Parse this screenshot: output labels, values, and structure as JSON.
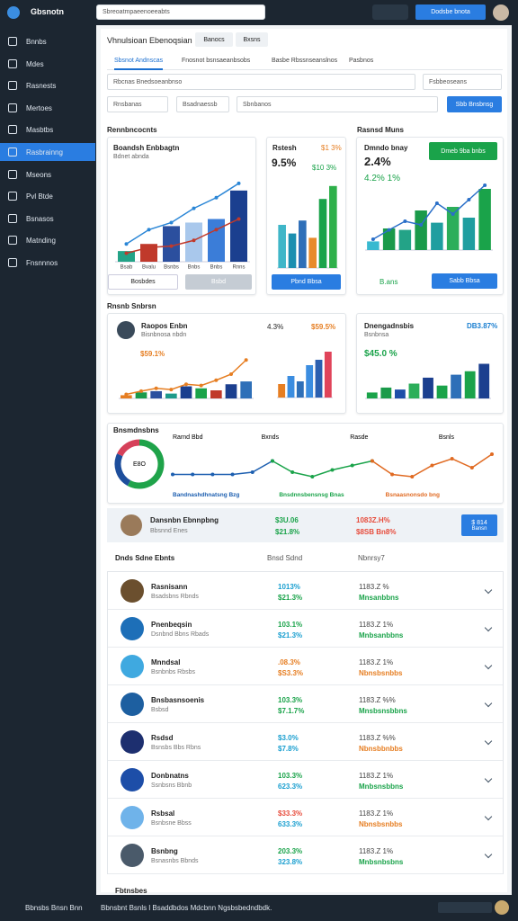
{
  "header": {
    "logo": "Gbsnotn",
    "search": "Sbreoatmpaeenoeeabts",
    "button": "Dodsbe bnota"
  },
  "sidebar": {
    "items": [
      "Bnnbs",
      "Mdes",
      "Rasnests",
      "Mertoes",
      "Masbtbs",
      "Rasbrainng",
      "Mseons",
      "Pvl Btde",
      "Bsnasos",
      "Matnding",
      "Fnsnnnos"
    ],
    "active": 5
  },
  "main": {
    "title": "Vhnulsioan Ebenoqsian",
    "tabs": [
      "Banocs",
      "Bxsns"
    ],
    "subtabs": [
      "Sbsnot Andnscas",
      "Fnosnot bsnsaeanbsobs",
      "Basbe Rbssnseanslnos",
      "Pasbnos"
    ],
    "filters": [
      "Rbcnas Bnedsoeanbnso",
      "Fsbbeoseans",
      "Rnsbanas",
      "Bsadnaessb",
      "Sbnbanos"
    ],
    "apply": "Sbb Bnsbnsg",
    "section1": "Rennbncocnts",
    "section1b": "Rasnsd Muns",
    "section2": "Rnsnb Snbrsn",
    "section3": "Bnsmdnsbns"
  },
  "chart_data": [
    {
      "type": "bar",
      "title": "Boandsh Enbbagtn",
      "subtitle": "Bdnet abnda",
      "categories": [
        "Bsab",
        "Bvalu",
        "Bsnbs",
        "Bnbs",
        "Bnbs",
        "Rnns"
      ],
      "values": [
        15,
        25,
        50,
        55,
        60,
        100
      ],
      "colors": [
        "#23a387",
        "#c0392b",
        "#2b4f9e",
        "#a9c8ec",
        "#3b7dd8",
        "#1b3f8f"
      ],
      "lines": [
        {
          "color": "#2a86d6",
          "values": [
            25,
            45,
            55,
            75,
            90,
            110
          ]
        },
        {
          "color": "#c0392b",
          "values": [
            12,
            20,
            22,
            30,
            45,
            60
          ]
        }
      ],
      "ylim": [
        0,
        120
      ],
      "buttons": [
        "Bosbdes",
        "Bsbd"
      ]
    },
    {
      "type": "bar",
      "title": "Rstesh",
      "stats": [
        "$1 3%",
        "9.5%",
        "$10 3%"
      ],
      "values": [
        50,
        40,
        55,
        35,
        80,
        95
      ],
      "colors": [
        "#3fb6c8",
        "#1c8fb0",
        "#2e6fb8",
        "#e88a2a",
        "#1aa34a",
        "#2eb04a"
      ],
      "ylim": [
        0,
        100
      ],
      "buttons": [
        "Pbnd Bbsa"
      ]
    },
    {
      "type": "bar",
      "title": "Dmndo bnay",
      "stats": [
        "2.4%",
        "4.2% 1%"
      ],
      "badge": "Dmeb 9ba bnbs",
      "values": [
        12,
        30,
        28,
        55,
        38,
        60,
        45,
        85
      ],
      "colors": [
        "#39b9d0",
        "#1a9a4a",
        "#23a387",
        "#1a9a4a",
        "#1f9ea0",
        "#2cae5a",
        "#1f9ea0",
        "#1aa34a"
      ],
      "lines": [
        {
          "color": "#2a6fc8",
          "values": [
            15,
            28,
            40,
            35,
            65,
            50,
            70,
            90
          ]
        }
      ],
      "ylim": [
        0,
        100
      ],
      "buttons": [
        "B.ans",
        "Sabb Bbsa"
      ]
    },
    {
      "type": "bar",
      "title": "Raopos Enbn",
      "subtitle": "Bisnbnosa nbdn",
      "stats": [
        "$59.1%"
      ],
      "values": [
        8,
        15,
        18,
        12,
        30,
        25,
        20,
        35,
        42
      ],
      "colors": [
        "#e67e22",
        "#1a9a4a",
        "#2b4f9e",
        "#1d9a8a",
        "#1b3f8f",
        "#1aa34a",
        "#c0392b",
        "#1b3f8f",
        "#2e6fb8"
      ],
      "lines": [
        {
          "color": "#e67e22",
          "values": [
            10,
            18,
            25,
            22,
            35,
            32,
            45,
            60,
            95
          ]
        }
      ],
      "ylim": [
        0,
        100
      ]
    },
    {
      "type": "bar",
      "stats": [
        "4.3%",
        "$59.5%"
      ],
      "values": [
        25,
        40,
        30,
        60,
        70,
        85
      ],
      "colors": [
        "#e67e22",
        "#3b8de0",
        "#2e6fb8",
        "#3b8de0",
        "#2b5fb0",
        "#e0445a"
      ],
      "ylim": [
        0,
        100
      ]
    },
    {
      "type": "bar",
      "title": "Dnengadnsbis",
      "subtitle": "Bsnbnsa",
      "stats": [
        "DB3.87%",
        "$45.0 %"
      ],
      "values": [
        12,
        22,
        18,
        30,
        42,
        26,
        48,
        55,
        70
      ],
      "colors": [
        "#1aa34a",
        "#1a9a4a",
        "#1d4ea8",
        "#2cae5a",
        "#1b3f8f",
        "#1aa34a",
        "#2e6fb8",
        "#1aa34a",
        "#1b3f8f"
      ],
      "ylim": [
        0,
        100
      ]
    },
    {
      "type": "pie",
      "title": "Bnsmdnsbns",
      "center": "E8O",
      "values": [
        58,
        24,
        18
      ],
      "colors": [
        "#1fa34a",
        "#1d4e9c",
        "#d6415a"
      ]
    },
    {
      "type": "line",
      "top_labels": [
        "Rarnd Bbd",
        "Bxnds",
        "Rasde",
        "Bsnls"
      ],
      "ylim": [
        0,
        100
      ],
      "series": [
        {
          "name": "Bandnashdhnatsng Bzg",
          "color": "#1d5fb0",
          "values": [
            25,
            25,
            25,
            25,
            30,
            55,
            null,
            null,
            null,
            null,
            null,
            null,
            null,
            null,
            null,
            null,
            null
          ]
        },
        {
          "name": "Bnsdnnsbensnsg Bnas",
          "color": "#1aa34a",
          "values": [
            null,
            null,
            null,
            null,
            null,
            55,
            30,
            20,
            35,
            45,
            55,
            null,
            null,
            null,
            null,
            null,
            null
          ]
        },
        {
          "name": "Bsnaasnonsdo bng",
          "color": "#e06a22",
          "values": [
            null,
            null,
            null,
            null,
            null,
            null,
            null,
            null,
            null,
            null,
            55,
            25,
            20,
            45,
            60,
            40,
            70
          ]
        }
      ]
    }
  ],
  "highlight": {
    "name": "Dansnbn Ebnnpbng",
    "sub": "Bbsnnd Enes",
    "v1": "$3U.06",
    "v2": "$21.8%",
    "v3": "1083Z.H%",
    "v4": "$8SB Bn8%",
    "button": "$ 814",
    "button_sub": "Bansn"
  },
  "table": {
    "title": "Dnds Sdne Ebnts",
    "col1": "Bnsd Sdnd",
    "col2": "Nbnrsy7",
    "rows": [
      {
        "name": "Rasnisann",
        "sub": "Bsadsbns Rbnds",
        "v1": "1013%",
        "v2": "$21.3%",
        "v3": "1183.Z %",
        "v4": "Mnsanbbns",
        "c1": "#1a9fd0",
        "c2": "#1aa34a",
        "c4": "#1aa34a",
        "icon": "#6b4f2e"
      },
      {
        "name": "Pnenbeqsin",
        "sub": "Dsnbnd Bbns Rbads",
        "v1": "103.1%",
        "v2": "$21.3%",
        "v3": "1183.Z 1%",
        "v4": "Mnbsanbbns",
        "c1": "#1aa34a",
        "c2": "#1a9fd0",
        "c4": "#1aa34a",
        "icon": "#1d6fb8"
      },
      {
        "name": "Mnndsal",
        "sub": "Bsnbnbs Rbsbs",
        "v1": ".08.3%",
        "v2": "$S3.3%",
        "v3": "1183.Z 1%",
        "v4": "Nbnsbsnbbs",
        "c1": "#e67e22",
        "c2": "#e67e22",
        "c4": "#e67e22",
        "icon": "#3fa9e0"
      },
      {
        "name": "Bnsbasnsoenis",
        "sub": "Bsbsd",
        "v1": "103.3%",
        "v2": "$7.1.7%",
        "v3": "1183.Z %%",
        "v4": "Mnsbsnsbbns",
        "c1": "#1aa34a",
        "c2": "#1aa34a",
        "c4": "#1aa34a",
        "icon": "#1d5fa0"
      },
      {
        "name": "Rsdsd",
        "sub": "Bsnsbs Bbs Rbns",
        "v1": "$3.0%",
        "v2": "$7.8%",
        "v3": "1183.Z %%",
        "v4": "Nbnsbbnbbs",
        "c1": "#1a9fd0",
        "c2": "#1a9fd0",
        "c4": "#e67e22",
        "icon": "#1d2f6f"
      },
      {
        "name": "Donbnatns",
        "sub": "Ssnbsns Bbnb",
        "v1": "103.3%",
        "v2": "623.3%",
        "v3": "1183.Z 1%",
        "v4": "Mnbsnsbbns",
        "c1": "#1aa34a",
        "c2": "#1a9fd0",
        "c4": "#1aa34a",
        "icon": "#1d4ea8"
      },
      {
        "name": "Rsbsal",
        "sub": "Bsnbsne Bbss",
        "v1": "$33.3%",
        "v2": "633.3%",
        "v3": "1183.Z 1%",
        "v4": "Nbnsbsnbbs",
        "c1": "#e74c3c",
        "c2": "#1a9fd0",
        "c4": "#e67e22",
        "icon": "#6fb3ea"
      },
      {
        "name": "Bsnbng",
        "sub": "Bsnasnbs Bbnds",
        "v1": "203.3%",
        "v2": "323.8%",
        "v3": "1183.Z 1%",
        "v4": "Mnbsnbsbns",
        "c1": "#1aa34a",
        "c2": "#1a9fd0",
        "c4": "#1aa34a",
        "icon": "#4a5a6a"
      }
    ]
  },
  "footer": {
    "label": "Fbtnsbes",
    "status": "Bbnsbs Bnsn Bnn",
    "links": "Bbnsbnt Bsnls l Bsaddbdos Mdcbnn Ngsbsbedndbdk."
  }
}
